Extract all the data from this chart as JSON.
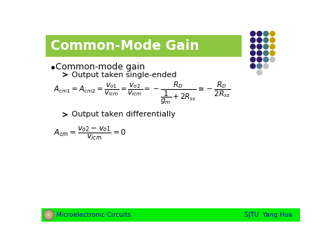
{
  "title": "Common-Mode Gain",
  "title_bg_color": "#8dc63f",
  "title_text_color": "#ffffff",
  "slide_bg_color": "#ffffff",
  "footer_bg_color": "#00ee00",
  "footer_left": "Microelectronic Circuits",
  "footer_right": "SJTU  Yang Hua",
  "footer_text_color": "#0000cc",
  "bullet_main": "Common-mode gain",
  "sub_bullet1": "Output taken single-ended",
  "sub_bullet2": "Output taken differentially",
  "dot_grid": [
    [
      "#2e1a6b",
      "#2e1a6b",
      "#3a8a8a",
      "#c8a800",
      null
    ],
    [
      "#2e1a6b",
      "#2e1a6b",
      "#3a8a8a",
      "#c8a800",
      null
    ],
    [
      "#2e1a6b",
      "#2e1a6b",
      "#3a8a8a",
      "#c8a800",
      null
    ],
    [
      "#2e1a6b",
      "#2e1a6b",
      "#3a8a8a",
      "#c8a800",
      null
    ],
    [
      "#2e1a6b",
      "#2e1a6b",
      "#5b8fa8",
      "#c0c0c0",
      null
    ],
    [
      "#2e1a6b",
      "#5b8fa8",
      "#c0c0c0",
      null,
      null
    ],
    [
      null,
      "#c0c0c0",
      null,
      null,
      null
    ]
  ]
}
